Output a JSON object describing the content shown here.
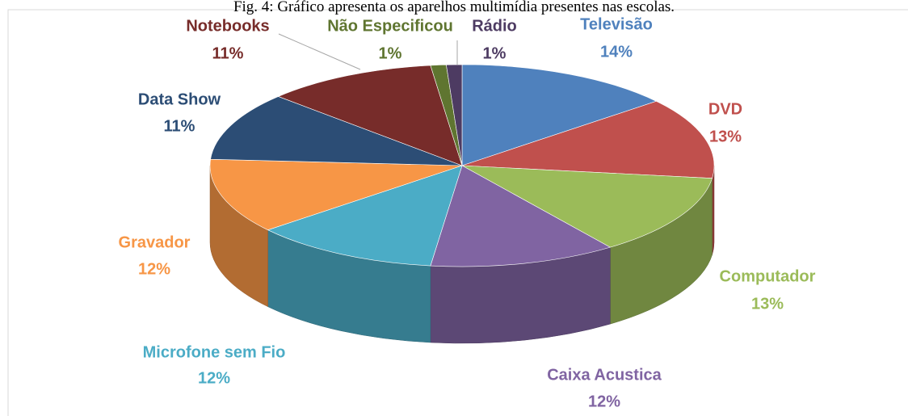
{
  "chart_data": {
    "type": "pie",
    "title": "Fig. 4: Gráfico apresenta os aparelhos multimídia presentes nas escolas.",
    "categories": [
      "Televisão",
      "DVD",
      "Computador",
      "Caixa Acustica",
      "Microfone sem Fio",
      "Gravador",
      "Data Show",
      "Notebooks",
      "Não Especificou",
      "Rádio"
    ],
    "values": [
      14,
      13,
      13,
      12,
      12,
      12,
      11,
      11,
      1,
      1
    ],
    "value_labels": [
      "14%",
      "13%",
      "13%",
      "12%",
      "12%",
      "12%",
      "11%",
      "11%",
      "1%",
      "1%"
    ],
    "colors": [
      "#4f81bd",
      "#c0504d",
      "#9bbb59",
      "#8064a2",
      "#4bacc6",
      "#f79646",
      "#2c4d75",
      "#772c2a",
      "#5f7530",
      "#4d3b62"
    ]
  }
}
